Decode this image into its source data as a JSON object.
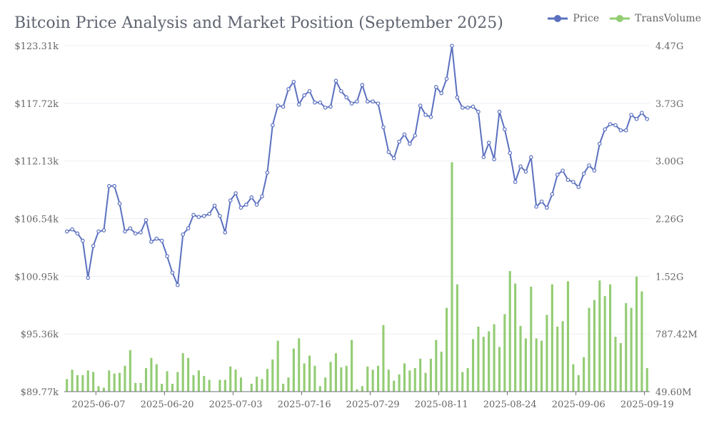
{
  "chart_data": {
    "type": "bar+line",
    "title": "Bitcoin Price Analysis and Market Position (September 2025)",
    "legend": {
      "placement": "top-right",
      "entries": [
        {
          "name": "Price",
          "color": "#5b70c0"
        },
        {
          "name": "TransVolume",
          "color": "#93cc73"
        }
      ]
    },
    "grid": true,
    "x_tick_labels": [
      "2025-06-07",
      "2025-06-20",
      "2025-07-03",
      "2025-07-16",
      "2025-07-29",
      "2025-08-11",
      "2025-08-24",
      "2025-09-06",
      "2025-09-19"
    ],
    "y_left": {
      "name": "Price",
      "ticks": [
        "$89.77k",
        "$95.36k",
        "$100.95k",
        "$106.54k",
        "$112.13k",
        "$117.72k",
        "$123.31k"
      ],
      "range": [
        89.77,
        123.31
      ]
    },
    "y_right": {
      "name": "TransVolume",
      "ticks": [
        "49.60M",
        "787.42M",
        "1.52G",
        "2.26G",
        "3.00G",
        "3.73G",
        "4.47G"
      ],
      "range": [
        0.0496,
        4.47
      ]
    },
    "dates": {
      "start": "2025-06-01",
      "end": "2025-09-22"
    },
    "series": [
      {
        "name": "Price",
        "type": "line",
        "color": "#5b70c0",
        "unit": "k USD",
        "values": [
          105.3,
          105.5,
          105.1,
          104.4,
          100.8,
          103.9,
          105.3,
          105.4,
          109.7,
          109.7,
          108.0,
          105.3,
          105.6,
          105.1,
          105.2,
          106.4,
          104.3,
          104.6,
          104.4,
          102.9,
          101.3,
          100.1,
          105.0,
          105.6,
          106.9,
          106.7,
          106.8,
          107.0,
          107.8,
          106.8,
          105.2,
          108.3,
          109.0,
          107.6,
          107.9,
          108.6,
          107.9,
          108.7,
          111.0,
          115.6,
          117.5,
          117.4,
          119.1,
          119.8,
          117.6,
          118.5,
          118.9,
          117.8,
          117.8,
          117.3,
          117.4,
          119.9,
          118.9,
          118.3,
          117.7,
          117.9,
          119.5,
          117.9,
          117.9,
          117.7,
          115.4,
          113.0,
          112.4,
          114.0,
          114.7,
          113.8,
          114.6,
          117.5,
          116.6,
          116.4,
          119.3,
          118.7,
          120.1,
          123.3,
          118.3,
          117.3,
          117.3,
          117.4,
          116.9,
          112.5,
          113.9,
          112.3,
          116.9,
          115.2,
          112.9,
          110.1,
          111.6,
          111.1,
          112.5,
          107.7,
          108.2,
          107.6,
          108.9,
          110.8,
          111.2,
          110.3,
          110.1,
          109.6,
          110.9,
          111.7,
          111.2,
          113.8,
          115.2,
          115.7,
          115.6,
          115.1,
          115.1,
          116.6,
          116.2,
          116.8,
          116.2
        ],
        "markers": true,
        "smooth": true
      },
      {
        "name": "TransVolume",
        "type": "bar",
        "color": "#93cc73",
        "unit": "G",
        "values": [
          0.21,
          0.33,
          0.26,
          0.26,
          0.32,
          0.3,
          0.12,
          0.1,
          0.32,
          0.28,
          0.29,
          0.38,
          0.58,
          0.16,
          0.16,
          0.35,
          0.48,
          0.4,
          0.15,
          0.31,
          0.15,
          0.3,
          0.54,
          0.48,
          0.26,
          0.32,
          0.25,
          0.2,
          0.05,
          0.2,
          0.2,
          0.37,
          0.33,
          0.23,
          0.05,
          0.15,
          0.24,
          0.21,
          0.34,
          0.46,
          0.7,
          0.15,
          0.23,
          0.6,
          0.73,
          0.41,
          0.51,
          0.38,
          0.12,
          0.23,
          0.43,
          0.54,
          0.36,
          0.38,
          0.71,
          0.08,
          0.12,
          0.37,
          0.33,
          0.38,
          0.9,
          0.33,
          0.19,
          0.27,
          0.41,
          0.32,
          0.35,
          0.47,
          0.29,
          0.47,
          0.71,
          0.56,
          1.12,
          2.98,
          1.42,
          0.3,
          0.35,
          0.72,
          0.88,
          0.75,
          0.82,
          0.91,
          0.62,
          1.04,
          1.59,
          1.43,
          0.89,
          0.73,
          1.39,
          0.73,
          0.7,
          1.03,
          1.42,
          0.88,
          0.95,
          1.46,
          0.4,
          0.26,
          0.49,
          1.12,
          1.22,
          1.47,
          1.27,
          1.42,
          0.75,
          0.67,
          1.18,
          1.12,
          1.52,
          1.33,
          0.35
        ]
      }
    ]
  }
}
